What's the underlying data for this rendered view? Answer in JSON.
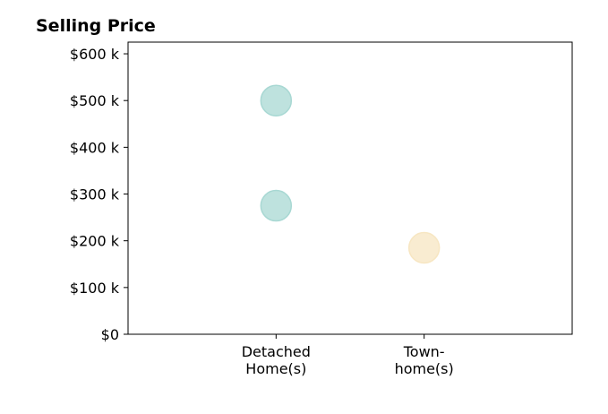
{
  "chart_data": {
    "type": "scatter",
    "title": "Selling Price",
    "xlabel": "",
    "ylabel": "",
    "categories": [
      [
        "Detached",
        "Home(s)"
      ],
      [
        "Town-",
        "home(s)"
      ]
    ],
    "y_ticks": [
      0,
      100000,
      200000,
      300000,
      400000,
      500000,
      600000
    ],
    "y_tick_labels": [
      "$0",
      "$100 k",
      "$200 k",
      "$300 k",
      "$400 k",
      "$500 k",
      "$600 k"
    ],
    "ylim": [
      0,
      625000
    ],
    "xlim": [
      -1,
      2
    ],
    "grid": false,
    "points": [
      {
        "category_index": 0,
        "value": 500000,
        "color": "#a8d8d3"
      },
      {
        "category_index": 0,
        "value": 275000,
        "color": "#a8d8d3"
      },
      {
        "category_index": 1,
        "value": 185000,
        "color": "#f7e6c2"
      }
    ]
  }
}
